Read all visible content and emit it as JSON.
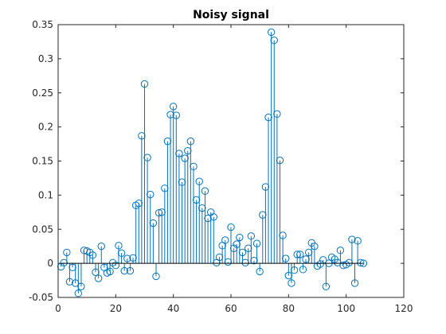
{
  "chart_data": {
    "type": "stem",
    "title": "Noisy signal",
    "xlabel": "",
    "ylabel": "",
    "xlim": [
      0,
      120
    ],
    "ylim": [
      -0.05,
      0.35
    ],
    "xticks": [
      0,
      20,
      40,
      60,
      80,
      100,
      120
    ],
    "xtick_labels": [
      "0",
      "20",
      "40",
      "60",
      "80",
      "100",
      "120"
    ],
    "yticks": [
      -0.05,
      0,
      0.05,
      0.1,
      0.15,
      0.2,
      0.25,
      0.3,
      0.35
    ],
    "ytick_labels": [
      "-0.05",
      "0",
      "0.05",
      "0.1",
      "0.15",
      "0.2",
      "0.25",
      "0.3",
      "0.35"
    ],
    "grid": false,
    "color": "#0072BD",
    "x": [
      1,
      2,
      3,
      4,
      5,
      6,
      7,
      8,
      9,
      10,
      11,
      12,
      13,
      14,
      15,
      16,
      17,
      18,
      19,
      20,
      21,
      22,
      23,
      24,
      25,
      26,
      27,
      28,
      29,
      30,
      31,
      32,
      33,
      34,
      35,
      36,
      37,
      38,
      39,
      40,
      41,
      42,
      43,
      44,
      45,
      46,
      47,
      48,
      49,
      50,
      51,
      52,
      53,
      54,
      55,
      56,
      57,
      58,
      59,
      60,
      61,
      62,
      63,
      64,
      65,
      66,
      67,
      68,
      69,
      70,
      71,
      72,
      73,
      74,
      75,
      76,
      77,
      78,
      79,
      80,
      81,
      82,
      83,
      84,
      85,
      86,
      87,
      88,
      89,
      90,
      91,
      92,
      93,
      94,
      95,
      96,
      97,
      98,
      99,
      100,
      101,
      102,
      103,
      104,
      105,
      106
    ],
    "y": [
      -0.005,
      0.001,
      0.016,
      -0.027,
      -0.006,
      -0.029,
      -0.044,
      -0.034,
      0.019,
      0.018,
      0.016,
      0.012,
      -0.013,
      -0.022,
      0.025,
      -0.006,
      -0.014,
      -0.012,
      0.001,
      -0.003,
      0.026,
      0.015,
      -0.011,
      0.007,
      -0.011,
      0.008,
      0.085,
      0.088,
      0.187,
      0.263,
      0.155,
      0.101,
      0.059,
      -0.019,
      0.074,
      0.075,
      0.11,
      0.179,
      0.218,
      0.23,
      0.217,
      0.161,
      0.119,
      0.154,
      0.165,
      0.179,
      0.142,
      0.093,
      0.12,
      0.081,
      0.106,
      0.066,
      0.075,
      0.068,
      0.001,
      0.009,
      0.026,
      0.034,
      0.002,
      0.053,
      0.022,
      0.028,
      0.038,
      0.016,
      0.001,
      0.022,
      0.04,
      0.004,
      0.029,
      -0.012,
      0.071,
      0.112,
      0.214,
      0.339,
      0.327,
      0.219,
      0.151,
      0.041,
      0.007,
      -0.018,
      -0.029,
      -0.01,
      0.013,
      0.013,
      -0.009,
      0.006,
      0.016,
      0.03,
      0.025,
      -0.004,
      -0.001,
      0.005,
      -0.034,
      0.0,
      0.009,
      0.006,
      0.001,
      0.019,
      -0.003,
      -0.002,
      0.001,
      0.035,
      -0.029,
      0.033,
      0.001,
      0.0
    ]
  }
}
